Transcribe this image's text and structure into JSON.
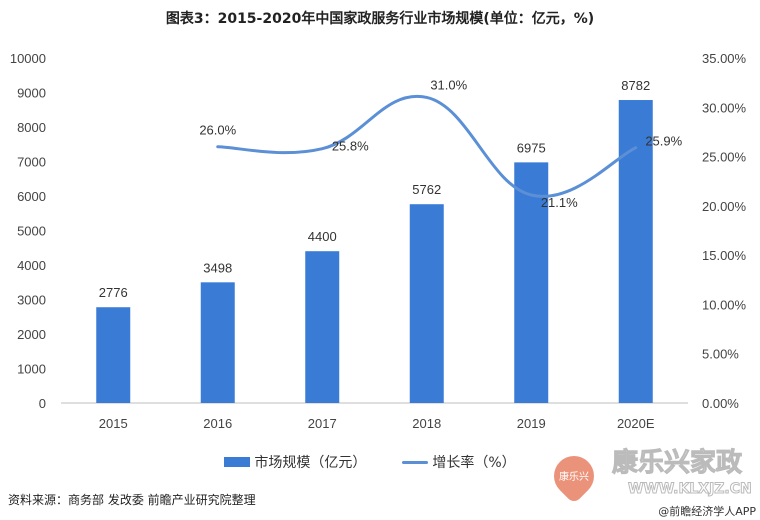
{
  "chart_data": {
    "type": "bar+line",
    "title": "图表3：2015-2020年中国家政服务行业市场规模(单位：亿元，%)",
    "categories": [
      "2015",
      "2016",
      "2017",
      "2018",
      "2019",
      "2020E"
    ],
    "series": [
      {
        "name": "市场规模（亿元）",
        "type": "bar",
        "axis": "left",
        "values": [
          2776,
          3498,
          4400,
          5762,
          6975,
          8782
        ],
        "labels": [
          "2776",
          "3498",
          "4400",
          "5762",
          "6975",
          "8782"
        ],
        "color": "#3a7bd5"
      },
      {
        "name": "增长率（%）",
        "type": "line",
        "axis": "right",
        "values": [
          null,
          26.0,
          25.8,
          31.0,
          21.1,
          25.9
        ],
        "labels": [
          "",
          "26.0%",
          "25.8%",
          "31.0%",
          "21.1%",
          "25.9%"
        ],
        "color": "#5b8fd6"
      }
    ],
    "left_axis": {
      "ylim": [
        0,
        10000
      ],
      "ticks": [
        "0",
        "1000",
        "2000",
        "3000",
        "4000",
        "5000",
        "6000",
        "7000",
        "8000",
        "9000",
        "10000"
      ]
    },
    "right_axis": {
      "ylim": [
        0,
        35
      ],
      "ticks": [
        "0.00%",
        "5.00%",
        "10.00%",
        "15.00%",
        "20.00%",
        "25.00%",
        "30.00%",
        "35.00%"
      ]
    },
    "grid": false,
    "legend_position": "bottom"
  },
  "source": "资料来源：商务部 发改委 前瞻产业研究院整理",
  "credit": "@前瞻经济学人APP",
  "watermark": {
    "brand": "康乐兴家政",
    "url": "WWW.KLXJZ.CN",
    "heart": "康乐兴"
  }
}
